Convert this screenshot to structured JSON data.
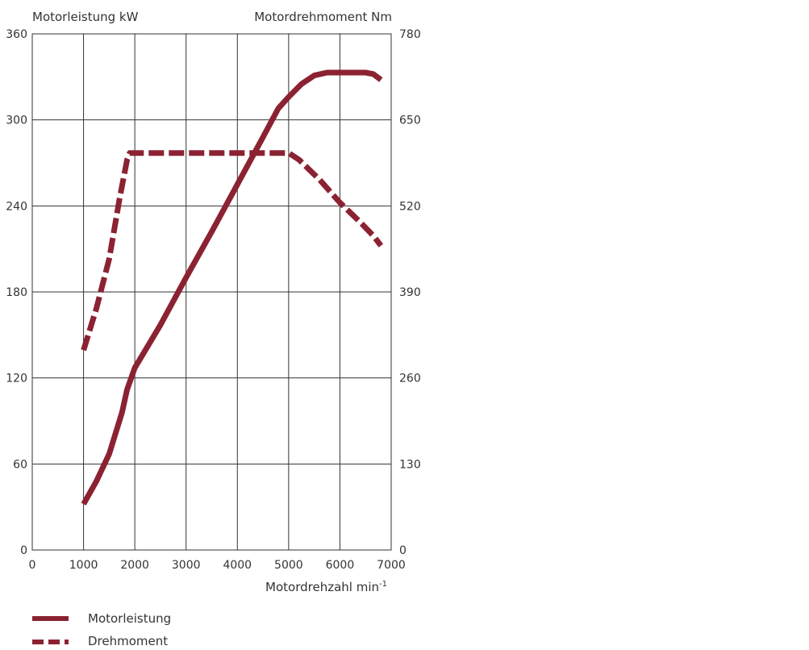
{
  "chart_data": {
    "type": "line",
    "title": "",
    "xlabel": "Motordrehzahl min",
    "xlabel_sup": "-1",
    "ylabel_left": "Motorleistung kW",
    "ylabel_right": "Motordrehmoment Nm",
    "xlim": [
      0,
      7000
    ],
    "ylim_left": [
      0,
      360
    ],
    "ylim_right": [
      0,
      780
    ],
    "x_ticks": [
      0,
      1000,
      2000,
      3000,
      4000,
      5000,
      6000,
      7000
    ],
    "y_left_ticks": [
      0,
      60,
      120,
      180,
      240,
      300,
      360
    ],
    "y_right_ticks": [
      0,
      130,
      260,
      390,
      520,
      650,
      780
    ],
    "grid": true,
    "legend_position": "bottom-left",
    "colors": {
      "series": "#8b2232",
      "grid": "#333333"
    },
    "series": [
      {
        "name": "Motorleistung",
        "axis": "left",
        "style": "solid",
        "points": [
          [
            1000,
            32
          ],
          [
            1250,
            48
          ],
          [
            1500,
            67
          ],
          [
            1750,
            96
          ],
          [
            1850,
            112
          ],
          [
            2000,
            127
          ],
          [
            2500,
            157
          ],
          [
            3000,
            190
          ],
          [
            3500,
            222
          ],
          [
            4000,
            255
          ],
          [
            4500,
            288
          ],
          [
            4800,
            308
          ],
          [
            5000,
            316
          ],
          [
            5250,
            325
          ],
          [
            5500,
            331
          ],
          [
            5750,
            333
          ],
          [
            6000,
            333
          ],
          [
            6500,
            333
          ],
          [
            6650,
            332
          ],
          [
            6800,
            328
          ]
        ]
      },
      {
        "name": "Drehmoment",
        "axis": "right",
        "style": "dashed",
        "points": [
          [
            1000,
            302
          ],
          [
            1250,
            365
          ],
          [
            1500,
            440
          ],
          [
            1700,
            530
          ],
          [
            1850,
            590
          ],
          [
            1900,
            600
          ],
          [
            2500,
            600
          ],
          [
            3000,
            600
          ],
          [
            3500,
            600
          ],
          [
            4000,
            600
          ],
          [
            4500,
            600
          ],
          [
            5000,
            600
          ],
          [
            5200,
            590
          ],
          [
            5600,
            560
          ],
          [
            6000,
            525
          ],
          [
            6400,
            495
          ],
          [
            6650,
            475
          ],
          [
            6800,
            460
          ]
        ]
      }
    ]
  }
}
